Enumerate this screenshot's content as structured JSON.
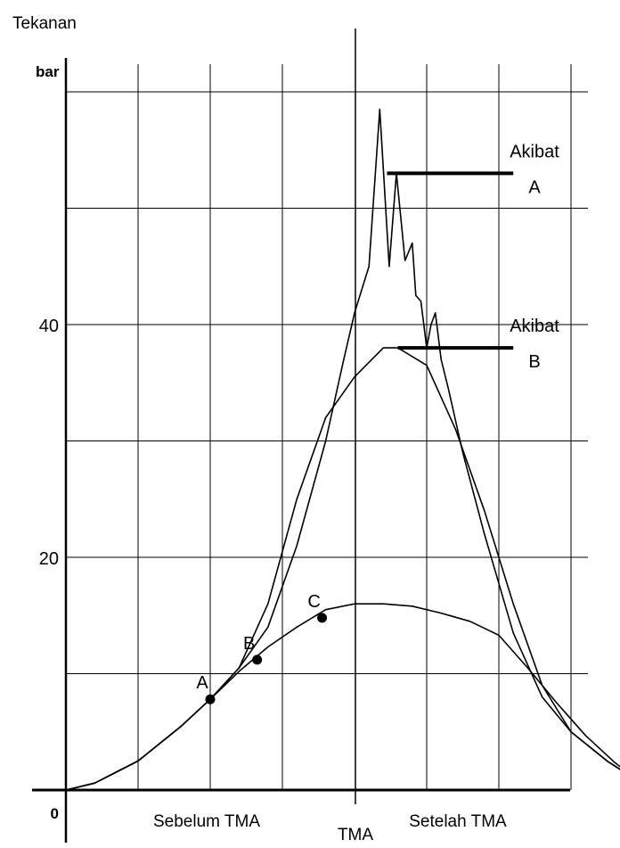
{
  "chart_data": {
    "type": "line",
    "ylabel": "Tekanan",
    "yunit": "bar",
    "yticks": [
      {
        "value": 0,
        "label": "0"
      },
      {
        "value": 20,
        "label": "20"
      },
      {
        "value": 40,
        "label": "40"
      }
    ],
    "ylim": [
      0,
      60
    ],
    "x_labels": {
      "before": "Sebelum TMA",
      "center": "TMA",
      "after": "Setelah TMA"
    },
    "grid": true,
    "series": [
      {
        "id": "knock",
        "x": [
          0,
          0.4,
          1.0,
          1.6,
          2.0,
          2.4,
          2.8,
          3.2,
          3.6,
          3.85,
          4.0,
          4.2,
          4.35,
          4.48,
          4.58,
          4.7,
          4.8,
          4.85,
          4.92,
          5.0,
          5.06,
          5.12,
          5.2,
          5.3,
          5.5,
          5.8,
          6.2,
          6.6,
          7.0,
          7.5,
          8.0
        ],
        "y": [
          0,
          0.6,
          2.5,
          5.5,
          7.8,
          10.5,
          14,
          21,
          30,
          37,
          41,
          45,
          58.5,
          45,
          53,
          45.5,
          47,
          42.5,
          42,
          38,
          40,
          41,
          37,
          34.5,
          29,
          22,
          13.5,
          8,
          5,
          2.5,
          0.5
        ]
      },
      {
        "id": "early",
        "x": [
          0,
          0.4,
          1.0,
          1.6,
          2.0,
          2.4,
          2.8,
          3.2,
          3.6,
          4.0,
          4.4,
          4.6,
          5.0,
          5.4,
          5.8,
          6.2,
          6.6,
          7.0,
          7.5,
          8.0
        ],
        "y": [
          0,
          0.6,
          2.5,
          5.5,
          7.8,
          10.5,
          16,
          25,
          32,
          35.5,
          38,
          38,
          36.5,
          31,
          24,
          16,
          9,
          5,
          2.5,
          0.5
        ]
      },
      {
        "id": "normal",
        "x": [
          0,
          0.4,
          1.0,
          1.6,
          2.0,
          2.4,
          2.8,
          3.2,
          3.6,
          4.0,
          4.4,
          4.8,
          5.2,
          5.6,
          6.0,
          6.4,
          6.8,
          7.2,
          7.6,
          8.0
        ],
        "y": [
          0,
          0.6,
          2.5,
          5.5,
          7.8,
          10.2,
          12.3,
          14,
          15.5,
          16,
          16,
          15.8,
          15.2,
          14.5,
          13.3,
          10.5,
          7.5,
          4.7,
          2.4,
          0.5
        ]
      }
    ],
    "ignition_points": [
      {
        "label": "A",
        "x": 2.0,
        "y": 7.8
      },
      {
        "label": "B",
        "x": 2.65,
        "y": 11.2
      },
      {
        "label": "C",
        "x": 3.55,
        "y": 14.8
      }
    ],
    "annotations": [
      {
        "text_line1": "Akibat",
        "text_line2": "A",
        "y": 53,
        "x_start": 4.45,
        "x_end": 6.2
      },
      {
        "text_line1": "Akibat",
        "text_line2": "B",
        "y": 38,
        "x_start": 4.6,
        "x_end": 6.2
      }
    ]
  }
}
